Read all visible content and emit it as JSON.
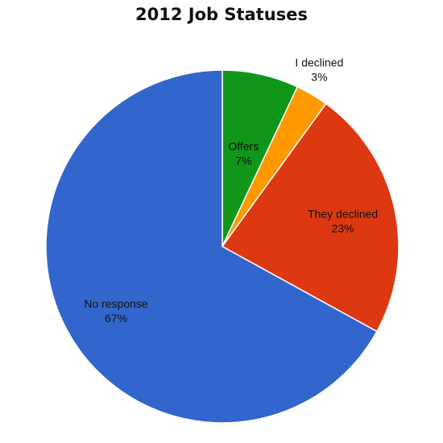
{
  "chart_data": {
    "type": "pie",
    "title": "2012 Job Statuses",
    "start_angle_deg": 0,
    "direction": "clockwise",
    "slices": [
      {
        "name": "Offers",
        "value": 7,
        "label": "7%",
        "color": "#109618"
      },
      {
        "name": "I declined",
        "value": 3,
        "label": "3%",
        "color": "#ff9900"
      },
      {
        "name": "They declined",
        "value": 23,
        "label": "23%",
        "color": "#dc3912"
      },
      {
        "name": "No response",
        "value": 67,
        "label": "67%",
        "color": "#3366cc"
      }
    ],
    "legend": "none"
  }
}
